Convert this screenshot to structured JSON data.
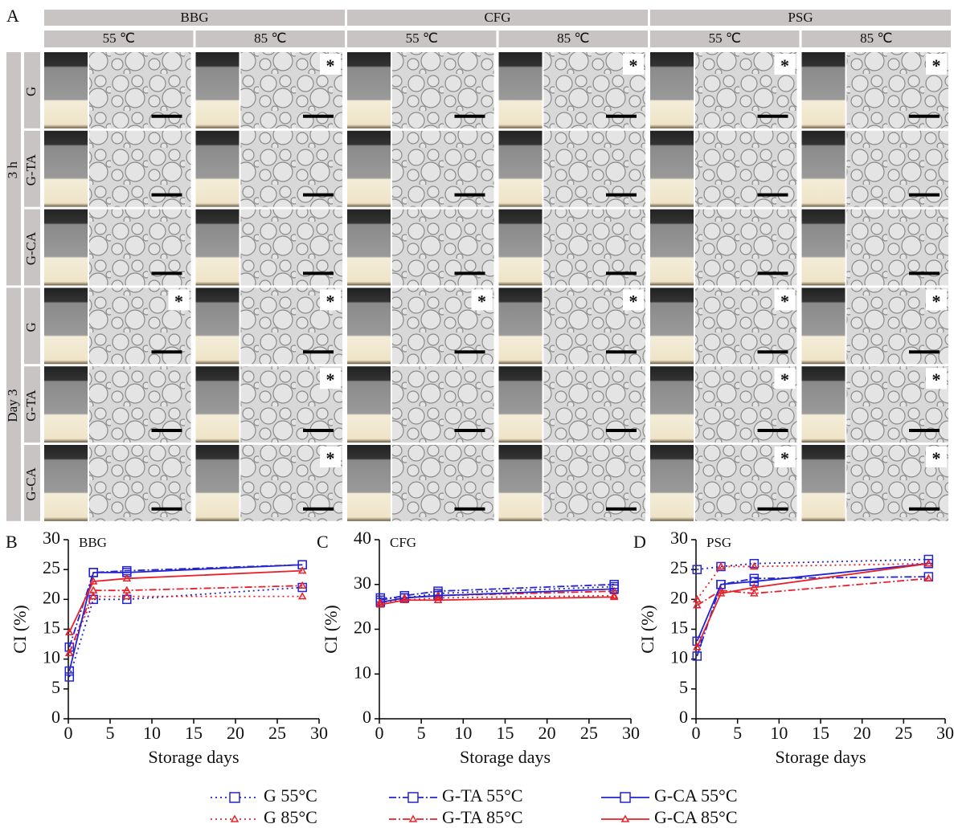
{
  "panel_a": {
    "label": "A",
    "groups": [
      {
        "name": "BBG",
        "temps": [
          "55 ℃",
          "85 ℃"
        ]
      },
      {
        "name": "CFG",
        "temps": [
          "55 ℃",
          "85 ℃"
        ]
      },
      {
        "name": "PSG",
        "temps": [
          "55 ℃",
          "85 ℃"
        ]
      }
    ],
    "times": [
      {
        "name": "3 h",
        "samples": [
          "G",
          "G-TA",
          "G-CA"
        ]
      },
      {
        "name": "Day 3",
        "samples": [
          "G",
          "G-TA",
          "G-CA"
        ]
      }
    ],
    "asterisks": [
      [
        null,
        "*",
        null,
        "*",
        "*",
        "*"
      ],
      [
        null,
        null,
        null,
        null,
        null,
        null
      ],
      [
        null,
        null,
        null,
        null,
        null,
        null
      ],
      [
        "*",
        "*",
        "*",
        "*",
        "*",
        "*"
      ],
      [
        null,
        "*",
        null,
        null,
        "*",
        "*"
      ],
      [
        null,
        "*",
        null,
        null,
        "*",
        "*"
      ]
    ]
  },
  "chart_data": [
    {
      "type": "line",
      "panel": "B",
      "title": "BBG",
      "x_label": "Storage days",
      "y_label": "CI (%)",
      "x": [
        0.125,
        3,
        7,
        28
      ],
      "xlim": [
        0,
        30
      ],
      "xticks": [
        0,
        5,
        10,
        15,
        20,
        25,
        30
      ],
      "ylim": [
        0,
        30
      ],
      "yticks": [
        0,
        5,
        10,
        15,
        20,
        25,
        30
      ],
      "series": [
        {
          "name": "G 55°C",
          "color": "#2323d0",
          "line_style": "dotted",
          "marker": "square",
          "values": [
            7,
            20,
            20,
            22
          ]
        },
        {
          "name": "G 85°C",
          "color": "#e8202a",
          "line_style": "dotted",
          "marker": "triangle",
          "values": [
            11,
            20.5,
            20.5,
            20.5
          ]
        },
        {
          "name": "G-TA 55°C",
          "color": "#2323d0",
          "line_style": "dashdot",
          "marker": "square",
          "values": [
            12,
            24.5,
            24.8,
            25.8
          ]
        },
        {
          "name": "G-TA 85°C",
          "color": "#e8202a",
          "line_style": "dashdot",
          "marker": "triangle",
          "values": [
            11,
            21.5,
            21.5,
            22.3
          ]
        },
        {
          "name": "G-CA 55°C",
          "color": "#2323d0",
          "line_style": "solid",
          "marker": "square",
          "values": [
            8,
            24.5,
            24.5,
            25.8
          ]
        },
        {
          "name": "G-CA 85°C",
          "color": "#e8202a",
          "line_style": "solid",
          "marker": "triangle",
          "values": [
            14.5,
            23,
            23.5,
            24.8
          ]
        }
      ]
    },
    {
      "type": "line",
      "panel": "C",
      "title": "CFG",
      "x_label": "Storage days",
      "y_label": "CI (%)",
      "x": [
        0.125,
        3,
        7,
        28
      ],
      "xlim": [
        0,
        30
      ],
      "xticks": [
        0,
        5,
        10,
        15,
        20,
        25,
        30
      ],
      "ylim": [
        0,
        40
      ],
      "yticks": [
        0,
        10,
        20,
        30,
        40
      ],
      "series": [
        {
          "name": "G 55°C",
          "color": "#2323d0",
          "line_style": "dotted",
          "marker": "square",
          "values": [
            27,
            27,
            28,
            29.5
          ]
        },
        {
          "name": "G 85°C",
          "color": "#e8202a",
          "line_style": "dotted",
          "marker": "triangle",
          "values": [
            26,
            26.5,
            27,
            27.5
          ]
        },
        {
          "name": "G-TA 55°C",
          "color": "#2323d0",
          "line_style": "dashdot",
          "marker": "square",
          "values": [
            26.5,
            27.5,
            28.5,
            30
          ]
        },
        {
          "name": "G-TA 85°C",
          "color": "#e8202a",
          "line_style": "dashdot",
          "marker": "triangle",
          "values": [
            26,
            27,
            27.5,
            28.5
          ]
        },
        {
          "name": "G-CA 55°C",
          "color": "#2323d0",
          "line_style": "solid",
          "marker": "square",
          "values": [
            26,
            27,
            27.5,
            29
          ]
        },
        {
          "name": "G-CA 85°C",
          "color": "#e8202a",
          "line_style": "solid",
          "marker": "triangle",
          "values": [
            25.5,
            26.5,
            26.5,
            27.2
          ]
        }
      ]
    },
    {
      "type": "line",
      "panel": "D",
      "title": "PSG",
      "x_label": "Storage days",
      "y_label": "CI (%)",
      "x": [
        0.125,
        3,
        7,
        28
      ],
      "xlim": [
        0,
        30
      ],
      "xticks": [
        0,
        5,
        10,
        15,
        20,
        25,
        30
      ],
      "ylim": [
        0,
        30
      ],
      "yticks": [
        0,
        5,
        10,
        15,
        20,
        25,
        30
      ],
      "series": [
        {
          "name": "G 55°C",
          "color": "#2323d0",
          "line_style": "dotted",
          "marker": "square",
          "values": [
            25,
            25.5,
            26,
            26.7
          ]
        },
        {
          "name": "G 85°C",
          "color": "#e8202a",
          "line_style": "dotted",
          "marker": "triangle",
          "values": [
            20,
            25.5,
            25.5,
            26
          ]
        },
        {
          "name": "G-TA 55°C",
          "color": "#2323d0",
          "line_style": "dashdot",
          "marker": "square",
          "values": [
            10.5,
            22.5,
            23.5,
            23.8
          ]
        },
        {
          "name": "G-TA 85°C",
          "color": "#e8202a",
          "line_style": "dashdot",
          "marker": "triangle",
          "values": [
            19,
            21.5,
            21,
            23.5
          ]
        },
        {
          "name": "G-CA 55°C",
          "color": "#2323d0",
          "line_style": "solid",
          "marker": "square",
          "values": [
            13,
            22.5,
            23,
            26
          ]
        },
        {
          "name": "G-CA 85°C",
          "color": "#e8202a",
          "line_style": "solid",
          "marker": "triangle",
          "values": [
            12,
            21,
            22,
            26
          ]
        }
      ]
    }
  ]
}
